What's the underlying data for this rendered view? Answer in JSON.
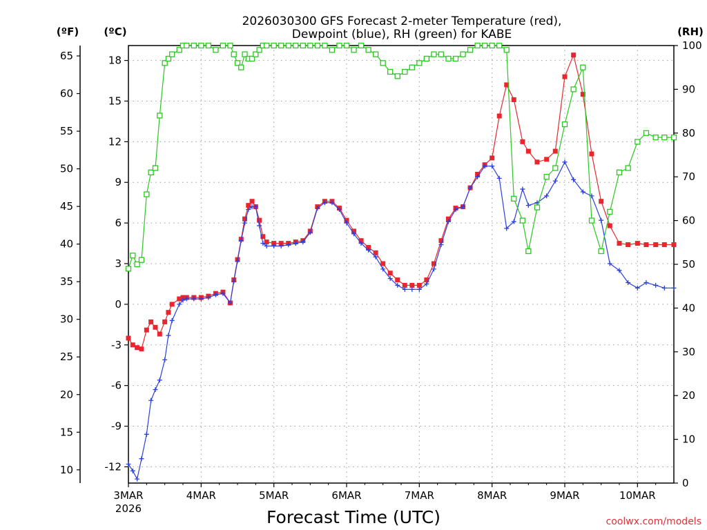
{
  "chart_data": {
    "type": "line",
    "title": "2026030300 GFS Forecast 2-meter Temperature (red),",
    "subtitle": "Dewpoint (blue), RH (green) for KABE",
    "xlabel": "Forecast Time (UTC)",
    "credit": "coolwx.com/models",
    "unit_f": "(ºF)",
    "unit_c": "(ºC)",
    "unit_rh": "(RH)",
    "x_unit": "days since 2026-03-03 00 UTC",
    "xlim": [
      0,
      7.5
    ],
    "ylim_c": [
      -13.2,
      19.1
    ],
    "ylim_rh": [
      0,
      100
    ],
    "x_ticks": [
      {
        "x": 0,
        "label": "3MAR",
        "label2": "2026"
      },
      {
        "x": 1,
        "label": "4MAR"
      },
      {
        "x": 2,
        "label": "5MAR"
      },
      {
        "x": 3,
        "label": "6MAR"
      },
      {
        "x": 4,
        "label": "7MAR"
      },
      {
        "x": 5,
        "label": "8MAR"
      },
      {
        "x": 6,
        "label": "9MAR"
      },
      {
        "x": 7,
        "label": "10MAR"
      }
    ],
    "y_ticks_c": [
      -12,
      -9,
      -6,
      -3,
      0,
      3,
      6,
      9,
      12,
      15,
      18
    ],
    "y_ticks_f": [
      10,
      15,
      20,
      25,
      30,
      35,
      40,
      45,
      50,
      55,
      60,
      65
    ],
    "y_ticks_rh": [
      0,
      10,
      20,
      30,
      40,
      50,
      60,
      70,
      80,
      90,
      100
    ],
    "series": [
      {
        "name": "Temperature",
        "unit": "°C",
        "color": "#e8262e",
        "marker": "square-filled",
        "x": [
          0.0,
          0.06,
          0.12,
          0.18,
          0.25,
          0.31,
          0.37,
          0.43,
          0.5,
          0.55,
          0.6,
          0.7,
          0.75,
          0.8,
          0.9,
          1.0,
          1.1,
          1.2,
          1.3,
          1.4,
          1.45,
          1.5,
          1.55,
          1.6,
          1.65,
          1.7,
          1.75,
          1.8,
          1.85,
          1.9,
          2.0,
          2.1,
          2.2,
          2.3,
          2.4,
          2.5,
          2.6,
          2.7,
          2.8,
          2.9,
          3.0,
          3.1,
          3.2,
          3.3,
          3.4,
          3.5,
          3.6,
          3.7,
          3.8,
          3.9,
          4.0,
          4.1,
          4.2,
          4.3,
          4.4,
          4.5,
          4.6,
          4.7,
          4.8,
          4.9,
          5.0,
          5.1,
          5.2,
          5.3,
          5.42,
          5.5,
          5.62,
          5.75,
          5.87,
          6.0,
          6.12,
          6.25,
          6.37,
          6.5,
          6.62,
          6.75,
          6.87,
          7.0,
          7.12,
          7.25,
          7.37,
          7.5
        ],
        "values": [
          -2.5,
          -3.0,
          -3.2,
          -3.3,
          -1.9,
          -1.3,
          -1.7,
          -2.2,
          -1.3,
          -0.6,
          0.0,
          0.4,
          0.5,
          0.5,
          0.5,
          0.5,
          0.6,
          0.8,
          0.9,
          0.1,
          1.8,
          3.3,
          4.8,
          6.3,
          7.3,
          7.6,
          7.2,
          6.2,
          5.0,
          4.6,
          4.5,
          4.5,
          4.5,
          4.6,
          4.7,
          5.4,
          7.2,
          7.6,
          7.6,
          7.1,
          6.2,
          5.4,
          4.7,
          4.2,
          3.8,
          3.0,
          2.3,
          1.8,
          1.4,
          1.4,
          1.4,
          1.8,
          3.0,
          4.7,
          6.3,
          7.1,
          7.2,
          8.6,
          9.6,
          10.3,
          10.8,
          13.9,
          16.2,
          15.1,
          12.0,
          11.3,
          10.5,
          10.7,
          11.3,
          16.8,
          18.4,
          15.5,
          11.1,
          7.6,
          5.8,
          4.5,
          4.4,
          4.5,
          4.4,
          4.4,
          4.4,
          4.4
        ]
      },
      {
        "name": "Dewpoint",
        "unit": "°C",
        "color": "#2a3fe0",
        "marker": "plus",
        "x": [
          0.0,
          0.06,
          0.12,
          0.18,
          0.25,
          0.31,
          0.37,
          0.43,
          0.5,
          0.55,
          0.6,
          0.7,
          0.75,
          0.8,
          0.9,
          1.0,
          1.1,
          1.2,
          1.3,
          1.4,
          1.45,
          1.5,
          1.55,
          1.6,
          1.65,
          1.7,
          1.75,
          1.8,
          1.85,
          1.9,
          2.0,
          2.1,
          2.2,
          2.3,
          2.4,
          2.5,
          2.6,
          2.7,
          2.8,
          2.9,
          3.0,
          3.1,
          3.2,
          3.3,
          3.4,
          3.5,
          3.6,
          3.7,
          3.8,
          3.9,
          4.0,
          4.1,
          4.2,
          4.3,
          4.4,
          4.5,
          4.6,
          4.7,
          4.8,
          4.9,
          5.0,
          5.1,
          5.2,
          5.3,
          5.42,
          5.5,
          5.62,
          5.75,
          5.87,
          6.0,
          6.12,
          6.25,
          6.37,
          6.5,
          6.62,
          6.75,
          6.87,
          7.0,
          7.12,
          7.25,
          7.37,
          7.5
        ],
        "values": [
          -11.8,
          -12.3,
          -12.9,
          -11.4,
          -9.6,
          -7.1,
          -6.3,
          -5.6,
          -4.1,
          -2.3,
          -1.2,
          0.0,
          0.3,
          0.4,
          0.4,
          0.4,
          0.5,
          0.7,
          0.8,
          0.1,
          1.7,
          3.2,
          4.7,
          6.0,
          7.0,
          7.2,
          7.2,
          5.8,
          4.5,
          4.3,
          4.3,
          4.3,
          4.4,
          4.5,
          4.6,
          5.3,
          7.1,
          7.5,
          7.5,
          7.0,
          6.0,
          5.2,
          4.5,
          4.0,
          3.5,
          2.6,
          1.9,
          1.4,
          1.1,
          1.1,
          1.1,
          1.5,
          2.6,
          4.4,
          6.1,
          7.0,
          7.2,
          8.6,
          9.4,
          10.2,
          10.2,
          9.3,
          5.6,
          6.1,
          8.5,
          7.3,
          7.5,
          8.0,
          9.1,
          10.5,
          9.2,
          8.3,
          8.0,
          6.2,
          3.0,
          2.5,
          1.6,
          1.2,
          1.6,
          1.4,
          1.2,
          1.2
        ]
      },
      {
        "name": "RH",
        "unit": "%",
        "color": "#28c81e",
        "marker": "square-open",
        "axis": "right",
        "x": [
          0.0,
          0.06,
          0.12,
          0.18,
          0.25,
          0.31,
          0.37,
          0.43,
          0.5,
          0.55,
          0.6,
          0.7,
          0.75,
          0.8,
          0.9,
          1.0,
          1.1,
          1.2,
          1.3,
          1.4,
          1.45,
          1.5,
          1.55,
          1.6,
          1.65,
          1.7,
          1.75,
          1.8,
          1.85,
          1.9,
          2.0,
          2.1,
          2.2,
          2.3,
          2.4,
          2.5,
          2.6,
          2.7,
          2.8,
          2.9,
          3.0,
          3.1,
          3.2,
          3.3,
          3.4,
          3.5,
          3.6,
          3.7,
          3.8,
          3.9,
          4.0,
          4.1,
          4.2,
          4.3,
          4.4,
          4.5,
          4.6,
          4.7,
          4.8,
          4.9,
          5.0,
          5.1,
          5.2,
          5.3,
          5.42,
          5.5,
          5.62,
          5.75,
          5.87,
          6.0,
          6.12,
          6.25,
          6.37,
          6.5,
          6.62,
          6.75,
          6.87,
          7.0,
          7.12,
          7.25,
          7.37,
          7.5
        ],
        "values": [
          49,
          52,
          50,
          51,
          66,
          71,
          72,
          84,
          96,
          97,
          98,
          99,
          100,
          100,
          100,
          100,
          100,
          99,
          100,
          100,
          98,
          96,
          95,
          98,
          97,
          97,
          98,
          99,
          100,
          100,
          100,
          100,
          100,
          100,
          100,
          100,
          100,
          100,
          99,
          100,
          100,
          99,
          100,
          99,
          98,
          96,
          94,
          93,
          94,
          95,
          96,
          97,
          98,
          98,
          97,
          97,
          98,
          99,
          100,
          100,
          100,
          100,
          99,
          65,
          60,
          53,
          63,
          70,
          72,
          82,
          90,
          95,
          60,
          53,
          62,
          71,
          72,
          78,
          80,
          79,
          79,
          79
        ]
      }
    ]
  }
}
